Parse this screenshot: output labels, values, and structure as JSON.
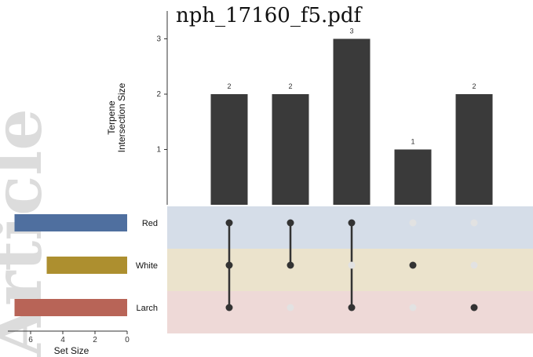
{
  "document": {
    "title": "nph_17160_f5.pdf"
  },
  "watermark": {
    "text": "Article",
    "color": "#dcdcdc"
  },
  "chart_data": {
    "type": "bar",
    "title": "",
    "intersection_axis": {
      "label_lines": [
        "Terpene",
        "Intersection Size"
      ],
      "ticks": [
        1,
        2,
        3
      ],
      "ylim": [
        0,
        3.2
      ]
    },
    "set_size_axis": {
      "label": "Set Size",
      "ticks": [
        6,
        4,
        2,
        0
      ],
      "xlim": [
        0,
        7
      ]
    },
    "sets": [
      {
        "name": "Red",
        "size": 7,
        "bar_color": "#4f6f9f",
        "band_color": "#d5dde8"
      },
      {
        "name": "White",
        "size": 5,
        "bar_color": "#ad8f2f",
        "band_color": "#ebe3cc"
      },
      {
        "name": "Larch",
        "size": 7,
        "bar_color": "#b86457",
        "band_color": "#eed9d7"
      }
    ],
    "intersections": [
      {
        "value": 2,
        "sets": [
          "Red",
          "White",
          "Larch"
        ]
      },
      {
        "value": 2,
        "sets": [
          "Red",
          "White"
        ]
      },
      {
        "value": 3,
        "sets": [
          "Red",
          "Larch"
        ]
      },
      {
        "value": 1,
        "sets": [
          "White"
        ]
      },
      {
        "value": 2,
        "sets": [
          "Larch"
        ]
      }
    ],
    "bar_color": "#3a3a3a",
    "dot_color": "#333333",
    "inactive_dot_color": "#e2e2e2"
  }
}
